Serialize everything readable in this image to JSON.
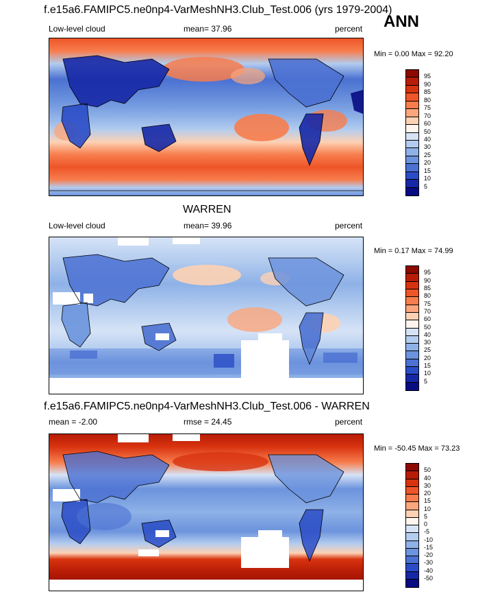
{
  "main_title": "f.e15a6.FAMIPC5.ne0np4-VarMeshNH3.Club_Test.006 (yrs 1979-2004)",
  "season": "ANN",
  "panels": [
    {
      "title": "",
      "left": "Low-level cloud",
      "center": "mean=  37.96",
      "right": "percent",
      "minmax": "Min =   0.00 Max =  92.20",
      "ticks": [
        "95",
        "90",
        "85",
        "80",
        "75",
        "70",
        "60",
        "50",
        "40",
        "30",
        "25",
        "20",
        "15",
        "10",
        "5"
      ],
      "colors": [
        "#8c0a00",
        "#b71c06",
        "#d8330f",
        "#ee5528",
        "#f77d4d",
        "#fba67c",
        "#fdd1b3",
        "#fdf5ee",
        "#d6e3f6",
        "#b3ccef",
        "#8eb1e7",
        "#6c93dd",
        "#4b71d2",
        "#2a4cc6",
        "#1628a6",
        "#080c82"
      ]
    },
    {
      "title": "WARREN",
      "left": "Low-level cloud",
      "center": "mean=  39.96",
      "right": "percent",
      "minmax": "Min =   0.17 Max =  74.99",
      "ticks": [
        "95",
        "90",
        "85",
        "80",
        "75",
        "70",
        "60",
        "50",
        "40",
        "30",
        "25",
        "20",
        "15",
        "10",
        "5"
      ],
      "colors": [
        "#8c0a00",
        "#b71c06",
        "#d8330f",
        "#ee5528",
        "#f77d4d",
        "#fba67c",
        "#fdd1b3",
        "#fdf5ee",
        "#d6e3f6",
        "#b3ccef",
        "#8eb1e7",
        "#6c93dd",
        "#4b71d2",
        "#2a4cc6",
        "#1628a6",
        "#080c82"
      ]
    },
    {
      "title": "f.e15a6.FAMIPC5.ne0np4-VarMeshNH3.Club_Test.006 - WARREN",
      "left": "mean =  -2.00",
      "center": "rmse =  24.45",
      "right": "percent",
      "minmax": "Min = -50.45 Max =  73.23",
      "ticks": [
        "50",
        "40",
        "30",
        "20",
        "15",
        "10",
        "5",
        "0",
        "-5",
        "-10",
        "-15",
        "-20",
        "-30",
        "-40",
        "-50"
      ],
      "colors": [
        "#8c0a00",
        "#b71c06",
        "#d8330f",
        "#ee5528",
        "#f77d4d",
        "#fba67c",
        "#fdd1b3",
        "#fdf5ee",
        "#d6e3f6",
        "#b3ccef",
        "#8eb1e7",
        "#6c93dd",
        "#4b71d2",
        "#2a4cc6",
        "#1628a6",
        "#080c82"
      ]
    }
  ]
}
